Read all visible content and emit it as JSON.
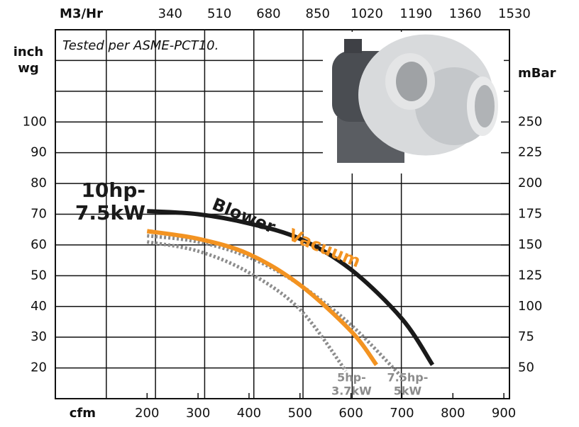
{
  "chart_data": {
    "type": "line",
    "annotation": "Tested per ASME-PCT10.",
    "x_label": "cfm",
    "x2_label": "M3/Hr",
    "y_label": [
      "inch",
      "wg"
    ],
    "y2_label": "mBar",
    "xlim": [
      20,
      911
    ],
    "xticks": [
      200,
      300,
      400,
      500,
      600,
      700,
      800,
      900
    ],
    "x2lim": [
      -57,
      1513
    ],
    "x2ticks": [
      340,
      510,
      680,
      850,
      1020,
      1190,
      1360,
      1530
    ],
    "ylim": [
      10,
      130
    ],
    "yticks": [
      20,
      30,
      40,
      50,
      60,
      70,
      80,
      90,
      100
    ],
    "y2lim": [
      25,
      325
    ],
    "y2ticks": [
      50,
      75,
      100,
      125,
      150,
      175,
      200,
      225,
      250
    ],
    "ygrid": [
      20,
      30,
      40,
      50,
      60,
      70,
      80,
      90,
      100,
      110,
      120
    ],
    "curve_text": [
      "Blower -",
      "Vacuum"
    ],
    "series": [
      {
        "name": [
          "10hp-",
          "7.5kW"
        ],
        "color": "#1a1a1a",
        "style": "solid",
        "x": [
          200,
          300,
          400,
          500,
          600,
          700,
          760
        ],
        "values": [
          71,
          70,
          67,
          62,
          52,
          36,
          21
        ]
      },
      {
        "color": "#f39321",
        "style": "solid",
        "x": [
          200,
          300,
          400,
          500,
          600,
          650
        ],
        "values": [
          64.5,
          62,
          57,
          47,
          32,
          21
        ]
      },
      {
        "name": [
          "5hp-",
          "3.7kW"
        ],
        "color": "#8c8c8c",
        "style": "dotted",
        "x": [
          200,
          300,
          400,
          500,
          590
        ],
        "values": [
          61,
          58,
          51,
          39,
          19
        ]
      },
      {
        "name": [
          "7.5hp-",
          "5kW"
        ],
        "color": "#8c8c8c",
        "style": "dotted",
        "x": [
          200,
          300,
          400,
          500,
          600,
          700
        ],
        "values": [
          63,
          61,
          56,
          47,
          34,
          17
        ]
      }
    ]
  }
}
